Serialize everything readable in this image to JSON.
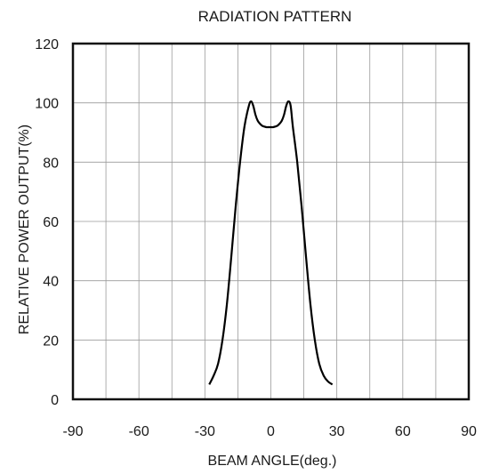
{
  "chart_data": {
    "type": "line",
    "title": "RADIATION PATTERN",
    "xlabel": "BEAM ANGLE(deg.)",
    "ylabel": "RELATIVE POWER OUTPUT(%)",
    "xlim": [
      -90,
      90
    ],
    "ylim": [
      0,
      120
    ],
    "xticks": [
      "-90",
      "-60",
      "-30",
      "0",
      "30",
      "60",
      "90"
    ],
    "yticks": [
      "0",
      "20",
      "40",
      "60",
      "80",
      "100",
      "120"
    ],
    "x_minor_step": 15,
    "y_minor_step": 20,
    "grid": true,
    "line_color": "#000000",
    "series": [
      {
        "x": [
          -28,
          -26,
          -24,
          -22,
          -20,
          -18,
          -16,
          -14,
          -12,
          -10,
          -9,
          -8,
          -7,
          -6,
          -5,
          -4,
          -3,
          -2,
          -1,
          0,
          1,
          2,
          3,
          4,
          5,
          6,
          7,
          8,
          9,
          10,
          12,
          14,
          16,
          18,
          20,
          22,
          24,
          26,
          28
        ],
        "y": [
          5,
          8,
          12,
          20,
          32,
          48,
          65,
          80,
          92,
          99,
          100.5,
          99,
          96,
          94,
          93,
          92.3,
          92,
          91.8,
          91.8,
          91.8,
          91.8,
          92,
          92.3,
          93,
          94,
          96,
          99,
          100.5,
          99,
          92,
          80,
          65,
          48,
          32,
          20,
          12,
          8,
          6,
          5
        ]
      }
    ]
  }
}
